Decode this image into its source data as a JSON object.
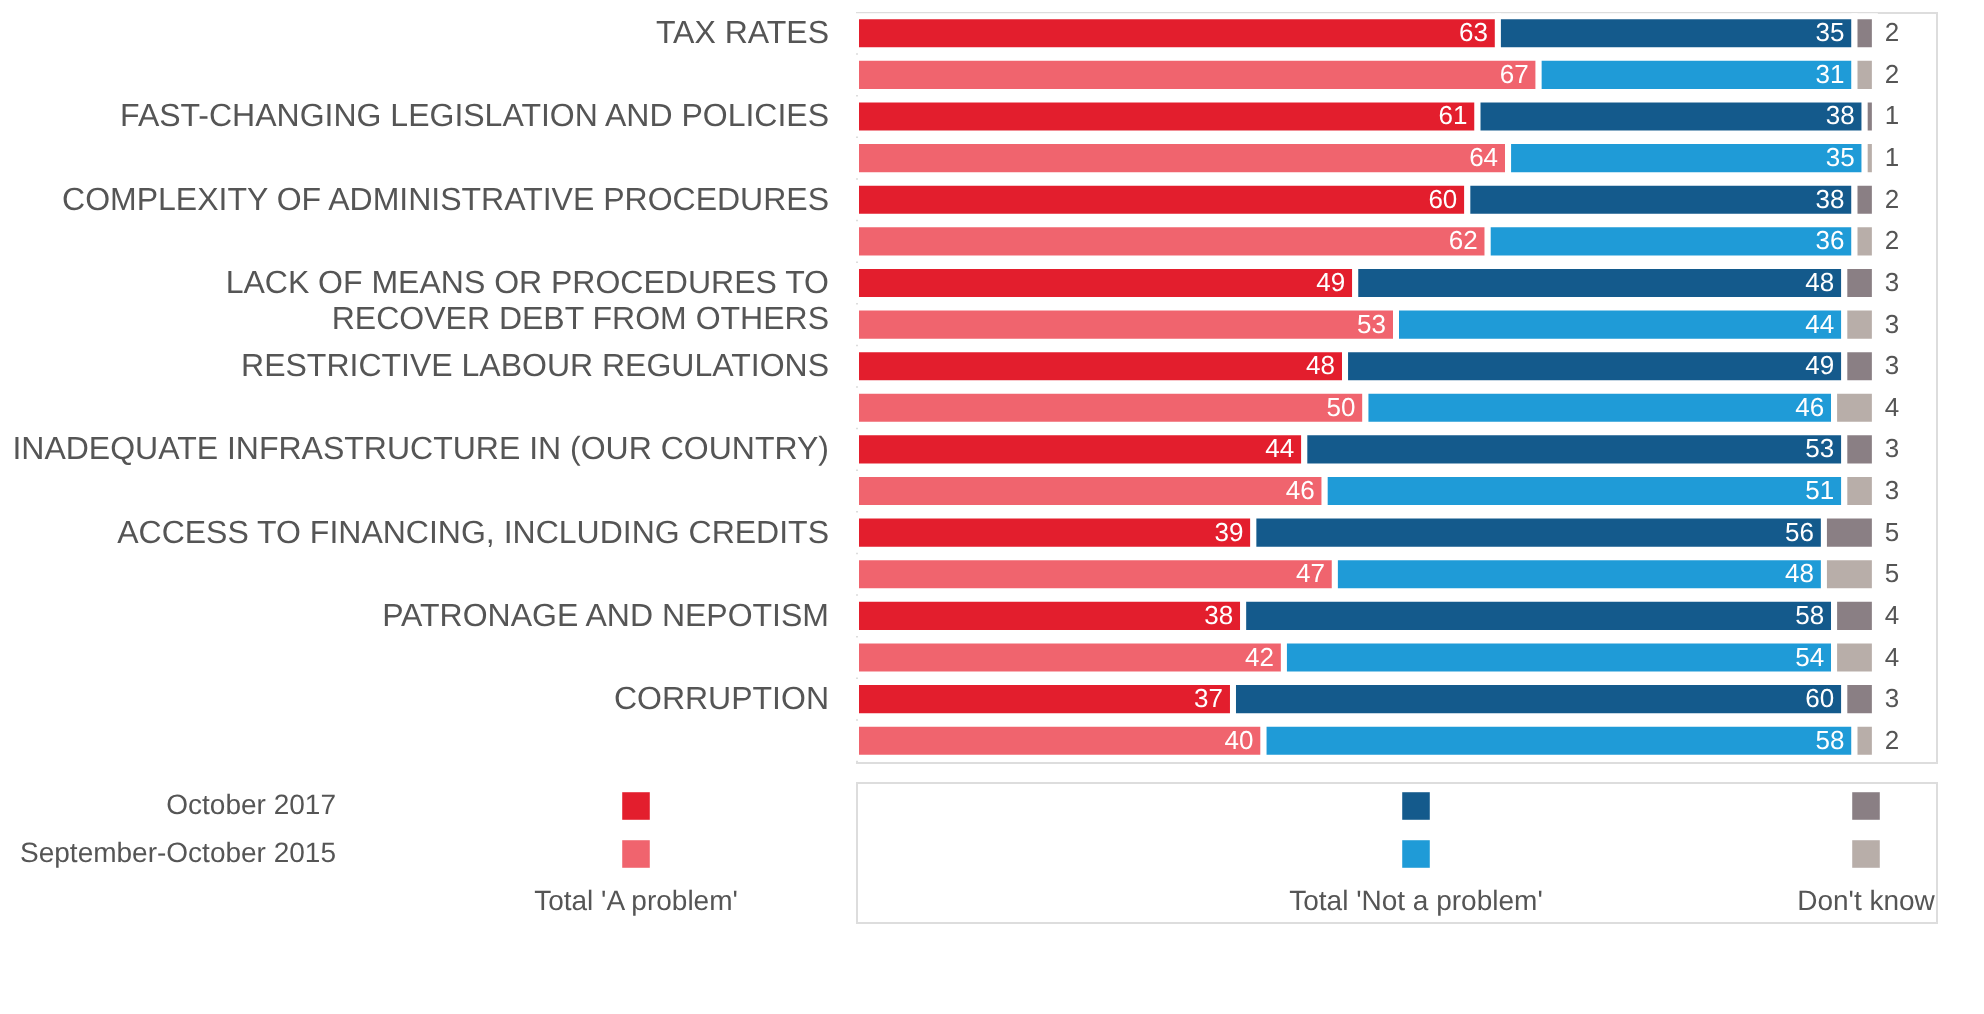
{
  "chart_data": {
    "type": "bar",
    "orientation": "horizontal",
    "stacked": true,
    "data_labels": true,
    "legend": "bottom",
    "tick_labels": "y",
    "categories": [
      "TAX RATES",
      null,
      "FAST-CHANGING LEGISLATION AND POLICIES",
      null,
      "COMPLEXITY OF ADMINISTRATIVE PROCEDURES",
      null,
      "LACK OF MEANS OR PROCEDURES TO RECOVER DEBT FROM OTHERS",
      null,
      "RESTRICTIVE LABOUR REGULATIONS",
      null,
      "INADEQUATE INFRASTRUCTURE IN (OUR COUNTRY)",
      null,
      "ACCESS TO FINANCING, INCLUDING CREDITS",
      null,
      "PATRONAGE AND NEPOTISM",
      null,
      "CORRUPTION",
      null
    ],
    "series": [
      {
        "name": "Total 'A problem'",
        "colors": [
          "#e31e2d",
          "#f0646e",
          "#e31e2d",
          "#f0646e",
          "#e31e2d",
          "#f0646e",
          "#e31e2d",
          "#f0646e",
          "#e31e2d",
          "#f0646e",
          "#e31e2d",
          "#f0646e",
          "#e31e2d",
          "#f0646e",
          "#e31e2d",
          "#f0646e",
          "#e31e2d",
          "#f0646e"
        ],
        "values": [
          63,
          67,
          61,
          64,
          60,
          62,
          49,
          53,
          48,
          50,
          44,
          46,
          39,
          47,
          38,
          42,
          37,
          40
        ]
      },
      {
        "name": "Total 'Not a problem'",
        "colors": [
          "#145a8c",
          "#1f9bd7",
          "#145a8c",
          "#1f9bd7",
          "#145a8c",
          "#1f9bd7",
          "#145a8c",
          "#1f9bd7",
          "#145a8c",
          "#1f9bd7",
          "#145a8c",
          "#1f9bd7",
          "#145a8c",
          "#1f9bd7",
          "#145a8c",
          "#1f9bd7",
          "#145a8c",
          "#1f9bd7"
        ],
        "values": [
          35,
          31,
          38,
          35,
          38,
          36,
          48,
          44,
          49,
          46,
          53,
          51,
          56,
          48,
          58,
          54,
          60,
          58
        ]
      },
      {
        "name": "Don't know",
        "colors": [
          "#8a7f84",
          "#b8aea9",
          "#8a7f84",
          "#b8aea9",
          "#8a7f84",
          "#b8aea9",
          "#8a7f84",
          "#b8aea9",
          "#8a7f84",
          "#b8aea9",
          "#8a7f84",
          "#b8aea9",
          "#8a7f84",
          "#b8aea9",
          "#8a7f84",
          "#b8aea9",
          "#8a7f84",
          "#b8aea9"
        ],
        "values": [
          2,
          2,
          1,
          1,
          2,
          2,
          3,
          3,
          3,
          4,
          3,
          3,
          5,
          5,
          4,
          4,
          3,
          2
        ]
      }
    ],
    "annotations": [
      "October 2017",
      "September-October 2015"
    ]
  }
}
